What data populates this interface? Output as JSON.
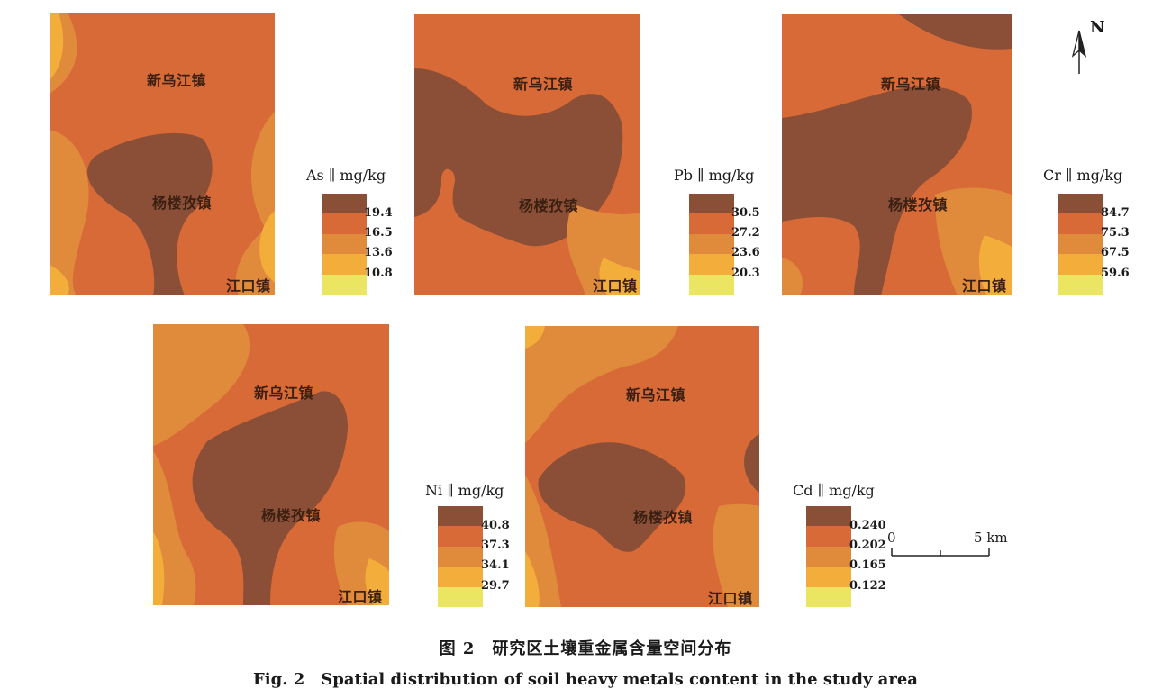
{
  "palette": {
    "c5": "#8a4f36",
    "c4": "#d76a37",
    "c3": "#e08a3c",
    "c2": "#f3ad3a",
    "c1": "#ebe661"
  },
  "scale_bar": {
    "start_label": "0",
    "end_label": "5",
    "unit": "km"
  },
  "north_arrow": {
    "label": "N",
    "icon": "north-arrow-icon"
  },
  "caption": {
    "cn": "图 2　研究区土壤重金属含量空间分布",
    "en": "Fig. 2　Spatial distribution of soil heavy metals content in the study area"
  },
  "panels": [
    {
      "element": "As",
      "legend_title": "As ∥ mg/kg",
      "legend_values": [
        "19.4",
        "16.5",
        "13.6",
        "10.8"
      ],
      "towns": {
        "north": "新乌江镇",
        "center": "杨楼孜镇",
        "south": "江口镇"
      }
    },
    {
      "element": "Pb",
      "legend_title": "Pb ∥ mg/kg",
      "legend_values": [
        "30.5",
        "27.2",
        "23.6",
        "20.3"
      ],
      "towns": {
        "north": "新乌江镇",
        "center": "杨楼孜镇",
        "south": "江口镇"
      }
    },
    {
      "element": "Cr",
      "legend_title": "Cr ∥ mg/kg",
      "legend_values": [
        "84.7",
        "75.3",
        "67.5",
        "59.6"
      ],
      "towns": {
        "north": "新乌江镇",
        "center": "杨楼孜镇",
        "south": "江口镇"
      }
    },
    {
      "element": "Ni",
      "legend_title": "Ni ∥ mg/kg",
      "legend_values": [
        "40.8",
        "37.3",
        "34.1",
        "29.7"
      ],
      "towns": {
        "north": "新乌江镇",
        "center": "杨楼孜镇",
        "south": "江口镇"
      }
    },
    {
      "element": "Cd",
      "legend_title": "Cd ∥ mg/kg",
      "legend_values": [
        "0.240",
        "0.202",
        "0.165",
        "0.122"
      ],
      "towns": {
        "north": "新乌江镇",
        "center": "杨楼孜镇",
        "south": "江口镇"
      }
    }
  ]
}
